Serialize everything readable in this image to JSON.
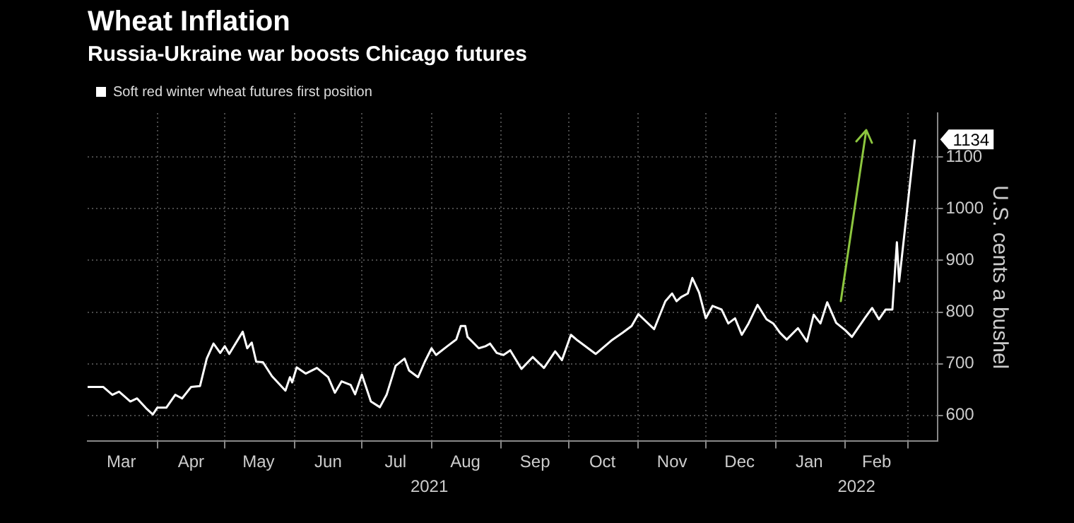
{
  "chart_data": {
    "type": "line",
    "title": "Wheat Inflation",
    "subtitle": "Russia-Ukraine war boosts Chicago futures",
    "ylabel": "U.S. cents a bushel",
    "xlim": [
      "2021-03-01",
      "2022-03-14"
    ],
    "ylim": [
      550,
      1185
    ],
    "yticks": [
      600,
      700,
      800,
      900,
      1000,
      1100
    ],
    "xticks": [
      {
        "value": "2021-03-16",
        "label": "Mar"
      },
      {
        "value": "2021-04-01",
        "label": null
      },
      {
        "value": "2021-04-16",
        "label": "Apr"
      },
      {
        "value": "2021-05-01",
        "label": null
      },
      {
        "value": "2021-05-16",
        "label": "May"
      },
      {
        "value": "2021-06-01",
        "label": null
      },
      {
        "value": "2021-06-16",
        "label": "Jun"
      },
      {
        "value": "2021-07-01",
        "label": null
      },
      {
        "value": "2021-07-16",
        "label": "Jul"
      },
      {
        "value": "2021-08-01",
        "label": null
      },
      {
        "value": "2021-08-16",
        "label": "Aug"
      },
      {
        "value": "2021-09-01",
        "label": null
      },
      {
        "value": "2021-09-16",
        "label": "Sep"
      },
      {
        "value": "2021-10-01",
        "label": null
      },
      {
        "value": "2021-10-16",
        "label": "Oct"
      },
      {
        "value": "2021-11-01",
        "label": null
      },
      {
        "value": "2021-11-16",
        "label": "Nov"
      },
      {
        "value": "2021-12-01",
        "label": null
      },
      {
        "value": "2021-12-16",
        "label": "Dec"
      },
      {
        "value": "2022-01-01",
        "label": null
      },
      {
        "value": "2022-01-16",
        "label": "Jan"
      },
      {
        "value": "2022-02-01",
        "label": null
      },
      {
        "value": "2022-02-15",
        "label": "Feb"
      },
      {
        "value": "2022-03-01",
        "label": null
      }
    ],
    "x2lim": [
      "2021-03-01",
      "2022-03-14"
    ],
    "x2ticks": [
      {
        "value": "2021-07-31",
        "label": "2021"
      },
      {
        "value": "2022-02-06",
        "label": "2022"
      }
    ],
    "grid": true,
    "legend": "top left",
    "marker": "none",
    "annotations": [
      {
        "text": "1134",
        "x": "2022-03-04",
        "y": 1134
      }
    ],
    "series": [
      {
        "name": "Soft red winter wheat futures first position",
        "color": "#ffffff",
        "x": [
          "2021-03-01",
          "2021-03-08",
          "2021-03-12",
          "2021-03-15",
          "2021-03-20",
          "2021-03-23",
          "2021-03-27",
          "2021-03-30",
          "2021-04-01",
          "2021-04-05",
          "2021-04-09",
          "2021-04-12",
          "2021-04-16",
          "2021-04-20",
          "2021-04-23",
          "2021-04-26",
          "2021-04-29",
          "2021-05-01",
          "2021-05-03",
          "2021-05-09",
          "2021-05-11",
          "2021-05-13",
          "2021-05-15",
          "2021-05-18",
          "2021-05-22",
          "2021-05-28",
          "2021-05-30",
          "2021-05-31",
          "2021-06-02",
          "2021-06-06",
          "2021-06-11",
          "2021-06-16",
          "2021-06-19",
          "2021-06-22",
          "2021-06-26",
          "2021-06-28",
          "2021-07-01",
          "2021-07-05",
          "2021-07-09",
          "2021-07-12",
          "2021-07-16",
          "2021-07-20",
          "2021-07-22",
          "2021-07-26",
          "2021-07-29",
          "2021-08-01",
          "2021-08-03",
          "2021-08-08",
          "2021-08-12",
          "2021-08-14",
          "2021-08-16",
          "2021-08-17",
          "2021-08-22",
          "2021-08-25",
          "2021-08-27",
          "2021-08-30",
          "2021-09-02",
          "2021-09-05",
          "2021-09-10",
          "2021-09-15",
          "2021-09-20",
          "2021-09-25",
          "2021-09-28",
          "2021-10-02",
          "2021-10-05",
          "2021-10-13",
          "2021-10-20",
          "2021-10-25",
          "2021-10-29",
          "2021-11-01",
          "2021-11-08",
          "2021-11-13",
          "2021-11-16",
          "2021-11-18",
          "2021-11-20",
          "2021-11-23",
          "2021-11-25",
          "2021-11-28",
          "2021-12-01",
          "2021-12-04",
          "2021-12-08",
          "2021-12-11",
          "2021-12-14",
          "2021-12-17",
          "2021-12-20",
          "2021-12-24",
          "2021-12-28",
          "2021-12-31",
          "2022-01-03",
          "2022-01-06",
          "2022-01-11",
          "2022-01-15",
          "2022-01-18",
          "2022-01-21",
          "2022-01-24",
          "2022-01-28",
          "2022-02-01",
          "2022-02-04",
          "2022-02-10",
          "2022-02-13",
          "2022-02-16",
          "2022-02-19",
          "2022-02-22",
          "2022-02-24",
          "2022-02-25",
          "2022-03-04"
        ],
        "values": [
          655,
          655,
          640,
          646,
          627,
          633,
          614,
          602,
          615,
          615,
          640,
          633,
          655,
          657,
          710,
          739,
          721,
          734,
          719,
          762,
          730,
          741,
          704,
          703,
          676,
          648,
          674,
          664,
          693,
          681,
          692,
          674,
          644,
          666,
          659,
          641,
          679,
          627,
          616,
          640,
          696,
          710,
          687,
          674,
          704,
          730,
          717,
          734,
          747,
          773,
          773,
          752,
          730,
          734,
          739,
          721,
          717,
          726,
          690,
          713,
          692,
          724,
          707,
          756,
          745,
          719,
          745,
          760,
          773,
          796,
          767,
          821,
          836,
          821,
          829,
          836,
          866,
          838,
          788,
          812,
          805,
          778,
          788,
          756,
          778,
          814,
          786,
          778,
          760,
          747,
          769,
          743,
          795,
          778,
          819,
          779,
          765,
          752,
          790,
          808,
          786,
          805,
          805,
          935,
          859,
          1134
        ]
      }
    ]
  }
}
